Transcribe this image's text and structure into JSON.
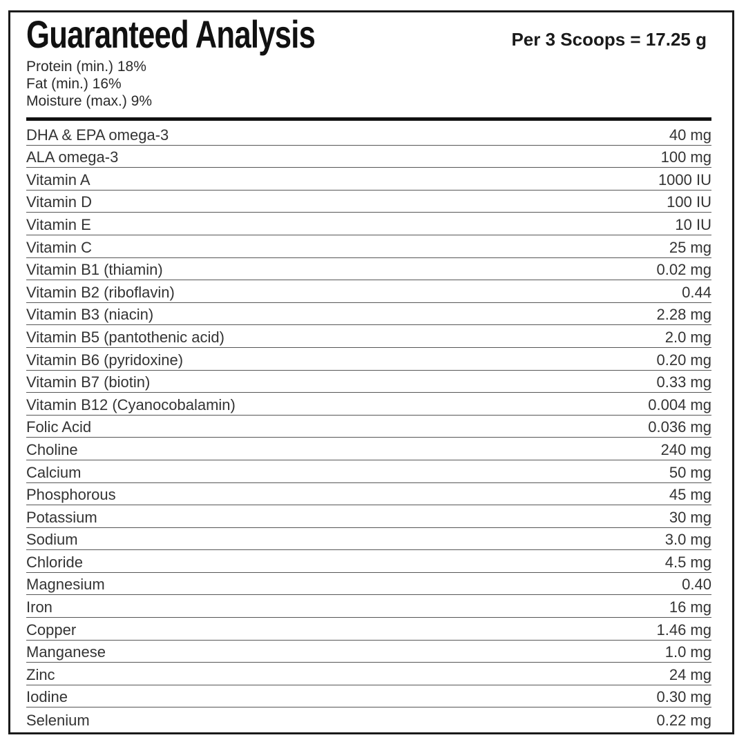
{
  "header": {
    "title": "Guaranteed Analysis",
    "serving": "Per 3 Scoops = 17.25 g"
  },
  "guaranteed": [
    "Protein (min.) 18%",
    "Fat (min.) 16%",
    "Moisture (max.) 9%"
  ],
  "nutrients": [
    {
      "name": "DHA & EPA omega-3",
      "amount": "40 mg"
    },
    {
      "name": "ALA omega-3",
      "amount": "100 mg"
    },
    {
      "name": "Vitamin A",
      "amount": "1000 IU"
    },
    {
      "name": "Vitamin D",
      "amount": "100 IU"
    },
    {
      "name": "Vitamin E",
      "amount": "10 IU"
    },
    {
      "name": "Vitamin C",
      "amount": "25 mg"
    },
    {
      "name": "Vitamin B1 (thiamin)",
      "amount": "0.02 mg"
    },
    {
      "name": "Vitamin B2 (riboflavin)",
      "amount": "0.44"
    },
    {
      "name": "Vitamin B3 (niacin)",
      "amount": "2.28 mg"
    },
    {
      "name": "Vitamin B5 (pantothenic acid)",
      "amount": "2.0 mg"
    },
    {
      "name": "Vitamin B6 (pyridoxine)",
      "amount": "0.20 mg"
    },
    {
      "name": "Vitamin B7 (biotin)",
      "amount": "0.33 mg"
    },
    {
      "name": "Vitamin B12 (Cyanocobalamin)",
      "amount": "0.004 mg"
    },
    {
      "name": "Folic Acid",
      "amount": "0.036 mg"
    },
    {
      "name": "Choline",
      "amount": "240 mg"
    },
    {
      "name": "Calcium",
      "amount": "50 mg"
    },
    {
      "name": "Phosphorous",
      "amount": "45 mg"
    },
    {
      "name": "Potassium",
      "amount": "30 mg"
    },
    {
      "name": "Sodium",
      "amount": "3.0 mg"
    },
    {
      "name": "Chloride",
      "amount": "4.5 mg"
    },
    {
      "name": "Magnesium",
      "amount": "0.40"
    },
    {
      "name": "Iron",
      "amount": "16 mg"
    },
    {
      "name": "Copper",
      "amount": "1.46 mg"
    },
    {
      "name": "Manganese",
      "amount": "1.0 mg"
    },
    {
      "name": "Zinc",
      "amount": "24 mg"
    },
    {
      "name": "Iodine",
      "amount": "0.30 mg"
    },
    {
      "name": "Selenium",
      "amount": "0.22 mg"
    }
  ]
}
